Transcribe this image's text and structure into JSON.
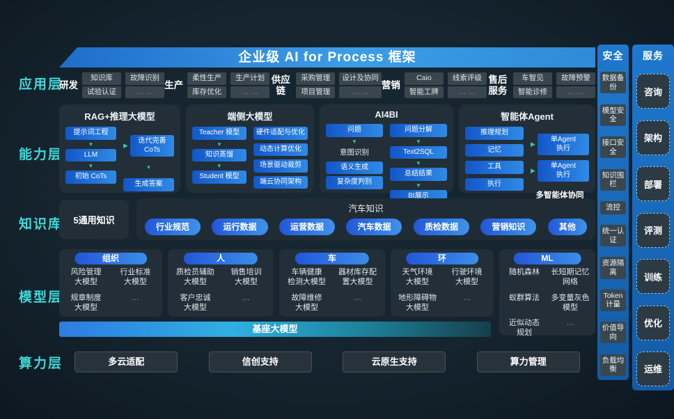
{
  "banner": {
    "title": "企业级 AI for Process 框架"
  },
  "layers": [
    {
      "label": "应用层"
    },
    {
      "label": "能力层"
    },
    {
      "label": "知识库"
    },
    {
      "label": "模型层"
    },
    {
      "label": "算力层"
    }
  ],
  "app_layer": {
    "groups": [
      {
        "label": "研发",
        "cols": [
          [
            "知识库",
            "试验认证"
          ],
          [
            "故障识别",
            "… …"
          ]
        ]
      },
      {
        "label": "生产",
        "cols": [
          [
            "柔性生产",
            "库存优化"
          ],
          [
            "生产计划",
            "… …"
          ]
        ]
      },
      {
        "label": "供应链",
        "cols": [
          [
            "采购管理",
            "项目管理"
          ],
          [
            "设计及协同",
            "… …"
          ]
        ]
      },
      {
        "label": "营销",
        "cols": [
          [
            "Caio",
            "智能工牌"
          ],
          [
            "线索评级",
            "… …"
          ]
        ]
      },
      {
        "label": "售后服务",
        "cols": [
          [
            "车智见",
            "智能诊修"
          ],
          [
            "故障预警",
            "… …"
          ]
        ]
      }
    ]
  },
  "capability_layer": {
    "panels": [
      {
        "title": "RAG+推理大模型",
        "left": [
          {
            "t": "box",
            "v": "提示词工程"
          },
          {
            "t": "arrow"
          },
          {
            "t": "box",
            "v": "LLM"
          },
          {
            "t": "arrow"
          },
          {
            "t": "box",
            "v": "初始 CoTs"
          }
        ],
        "right": [
          {
            "t": "abox",
            "v": "迭代完善\nCoTs"
          },
          {
            "t": "arrow"
          },
          {
            "t": "box",
            "v": "生成答案"
          }
        ]
      },
      {
        "title": "端侧大模型",
        "left": [
          {
            "t": "box",
            "v": "Teacher 模型"
          },
          {
            "t": "arrow"
          },
          {
            "t": "box",
            "v": "知识蒸馏"
          },
          {
            "t": "arrow"
          },
          {
            "t": "box",
            "v": "Student 模型"
          }
        ],
        "right": [
          {
            "t": "box",
            "v": "硬件适配与优化"
          },
          {
            "t": "box",
            "v": "动态计算优化"
          },
          {
            "t": "box",
            "v": "场景驱动裁剪"
          },
          {
            "t": "box",
            "v": "端云协同架构"
          }
        ]
      },
      {
        "title": "AI4BI",
        "left": [
          {
            "t": "box",
            "v": "问题"
          },
          {
            "t": "arrow"
          },
          {
            "t": "text",
            "v": "意图识别"
          },
          {
            "t": "box",
            "v": "语义生成"
          },
          {
            "t": "box",
            "v": "复杂度判别"
          }
        ],
        "right": [
          {
            "t": "box",
            "v": "问题分解"
          },
          {
            "t": "arrow"
          },
          {
            "t": "box",
            "v": "Text2SQL"
          },
          {
            "t": "arrow"
          },
          {
            "t": "box",
            "v": "总结结果"
          },
          {
            "t": "arrow"
          },
          {
            "t": "box",
            "v": "BI展示"
          }
        ]
      },
      {
        "title": "智能体Agent",
        "left": [
          {
            "t": "box",
            "v": "推理规划"
          },
          {
            "t": "box",
            "v": "记忆"
          },
          {
            "t": "box",
            "v": "工具"
          },
          {
            "t": "box",
            "v": "执行"
          }
        ],
        "right": [
          {
            "t": "abox",
            "v": "单Agent\n执行"
          },
          {
            "t": "abox",
            "v": "单Agent\n执行"
          },
          {
            "t": "cap",
            "v": "多智能体协同"
          }
        ]
      }
    ]
  },
  "knowledge_layer": {
    "general": "5通用知识",
    "auto_title": "汽车知识",
    "pills": [
      "行业规范",
      "运行数据",
      "运营数据",
      "汽车数据",
      "质检数据",
      "营销知识",
      "其他"
    ]
  },
  "model_layer": {
    "base_model": "基座大模型",
    "columns": [
      {
        "header": "组织",
        "cells": [
          "风险管理\n大模型",
          "行业标准\n大模型",
          "规章制度\n大模型",
          "…"
        ]
      },
      {
        "header": "人",
        "cells": [
          "质检员辅助\n大模型",
          "销售培训\n大模型",
          "客户忠诚\n大模型",
          "…"
        ]
      },
      {
        "header": "车",
        "cells": [
          "车辆健康\n检测大模型",
          "器材库存配\n置大模型",
          "故障维修\n大模型",
          "…"
        ]
      },
      {
        "header": "环",
        "cells": [
          "天气环境\n大模型",
          "行驶环境\n大模型",
          "地形障碍物\n大模型",
          "…"
        ]
      },
      {
        "header": "ML",
        "cells": [
          "随机森林",
          "长短期记忆\n网络",
          "蚁群算法",
          "多变量灰色\n模型",
          "近似动态\n规划",
          "…"
        ]
      }
    ]
  },
  "compute_layer": {
    "items": [
      "多云适配",
      "信创支持",
      "云原生支持",
      "算力管理"
    ]
  },
  "security_column": {
    "title": "安全",
    "items": [
      "数据备份",
      "模型安全",
      "接口安全",
      "知识围栏",
      "流控",
      "统一认证",
      "资源隔离",
      "Token计量",
      "价值导向",
      "负载均衡"
    ]
  },
  "service_column": {
    "title": "服务",
    "items": [
      "咨询",
      "架构",
      "部署",
      "评测",
      "训练",
      "优化",
      "运维"
    ]
  },
  "colors": {
    "background": "#15242e",
    "layer_label_cyan": "#3fd9d9",
    "banner_blue": "#3d9de6",
    "flow_box_blue": "#2f8ae6",
    "arrow_teal": "#2bcaa2",
    "panel_dark": "#222e38",
    "rail_blue": "#1f78cd"
  }
}
